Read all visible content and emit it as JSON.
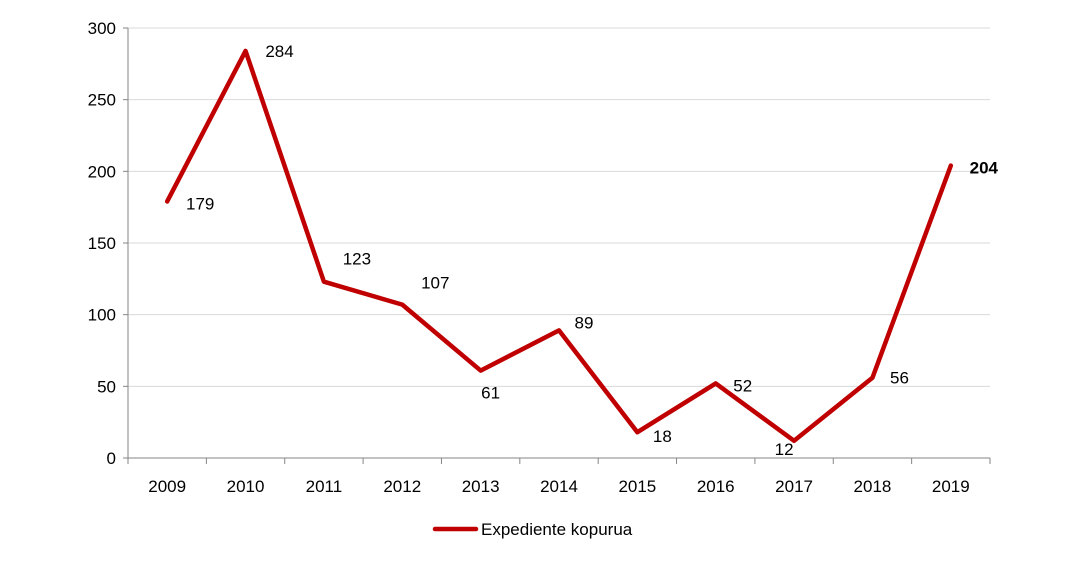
{
  "chart_data": {
    "type": "line",
    "title": "",
    "xlabel": "",
    "ylabel": "",
    "categories": [
      "2009",
      "2010",
      "2011",
      "2012",
      "2013",
      "2014",
      "2015",
      "2016",
      "2017",
      "2018",
      "2019"
    ],
    "series": [
      {
        "name": "Expediente kopurua",
        "color": "#C00000",
        "values": [
          179,
          284,
          123,
          107,
          61,
          89,
          18,
          52,
          12,
          56,
          204
        ]
      }
    ],
    "data_labels": [
      "179",
      "284",
      "123",
      "107",
      "61",
      "89",
      "18",
      "52",
      "12",
      "56",
      "204"
    ],
    "ylim": [
      0,
      300
    ],
    "yticks": [
      0,
      50,
      100,
      150,
      200,
      250,
      300
    ],
    "ytick_labels": [
      "0",
      "50",
      "100",
      "150",
      "200",
      "250",
      "300"
    ],
    "grid": true,
    "legend": {
      "position": "bottom",
      "label": "Expediente kopurua"
    }
  }
}
